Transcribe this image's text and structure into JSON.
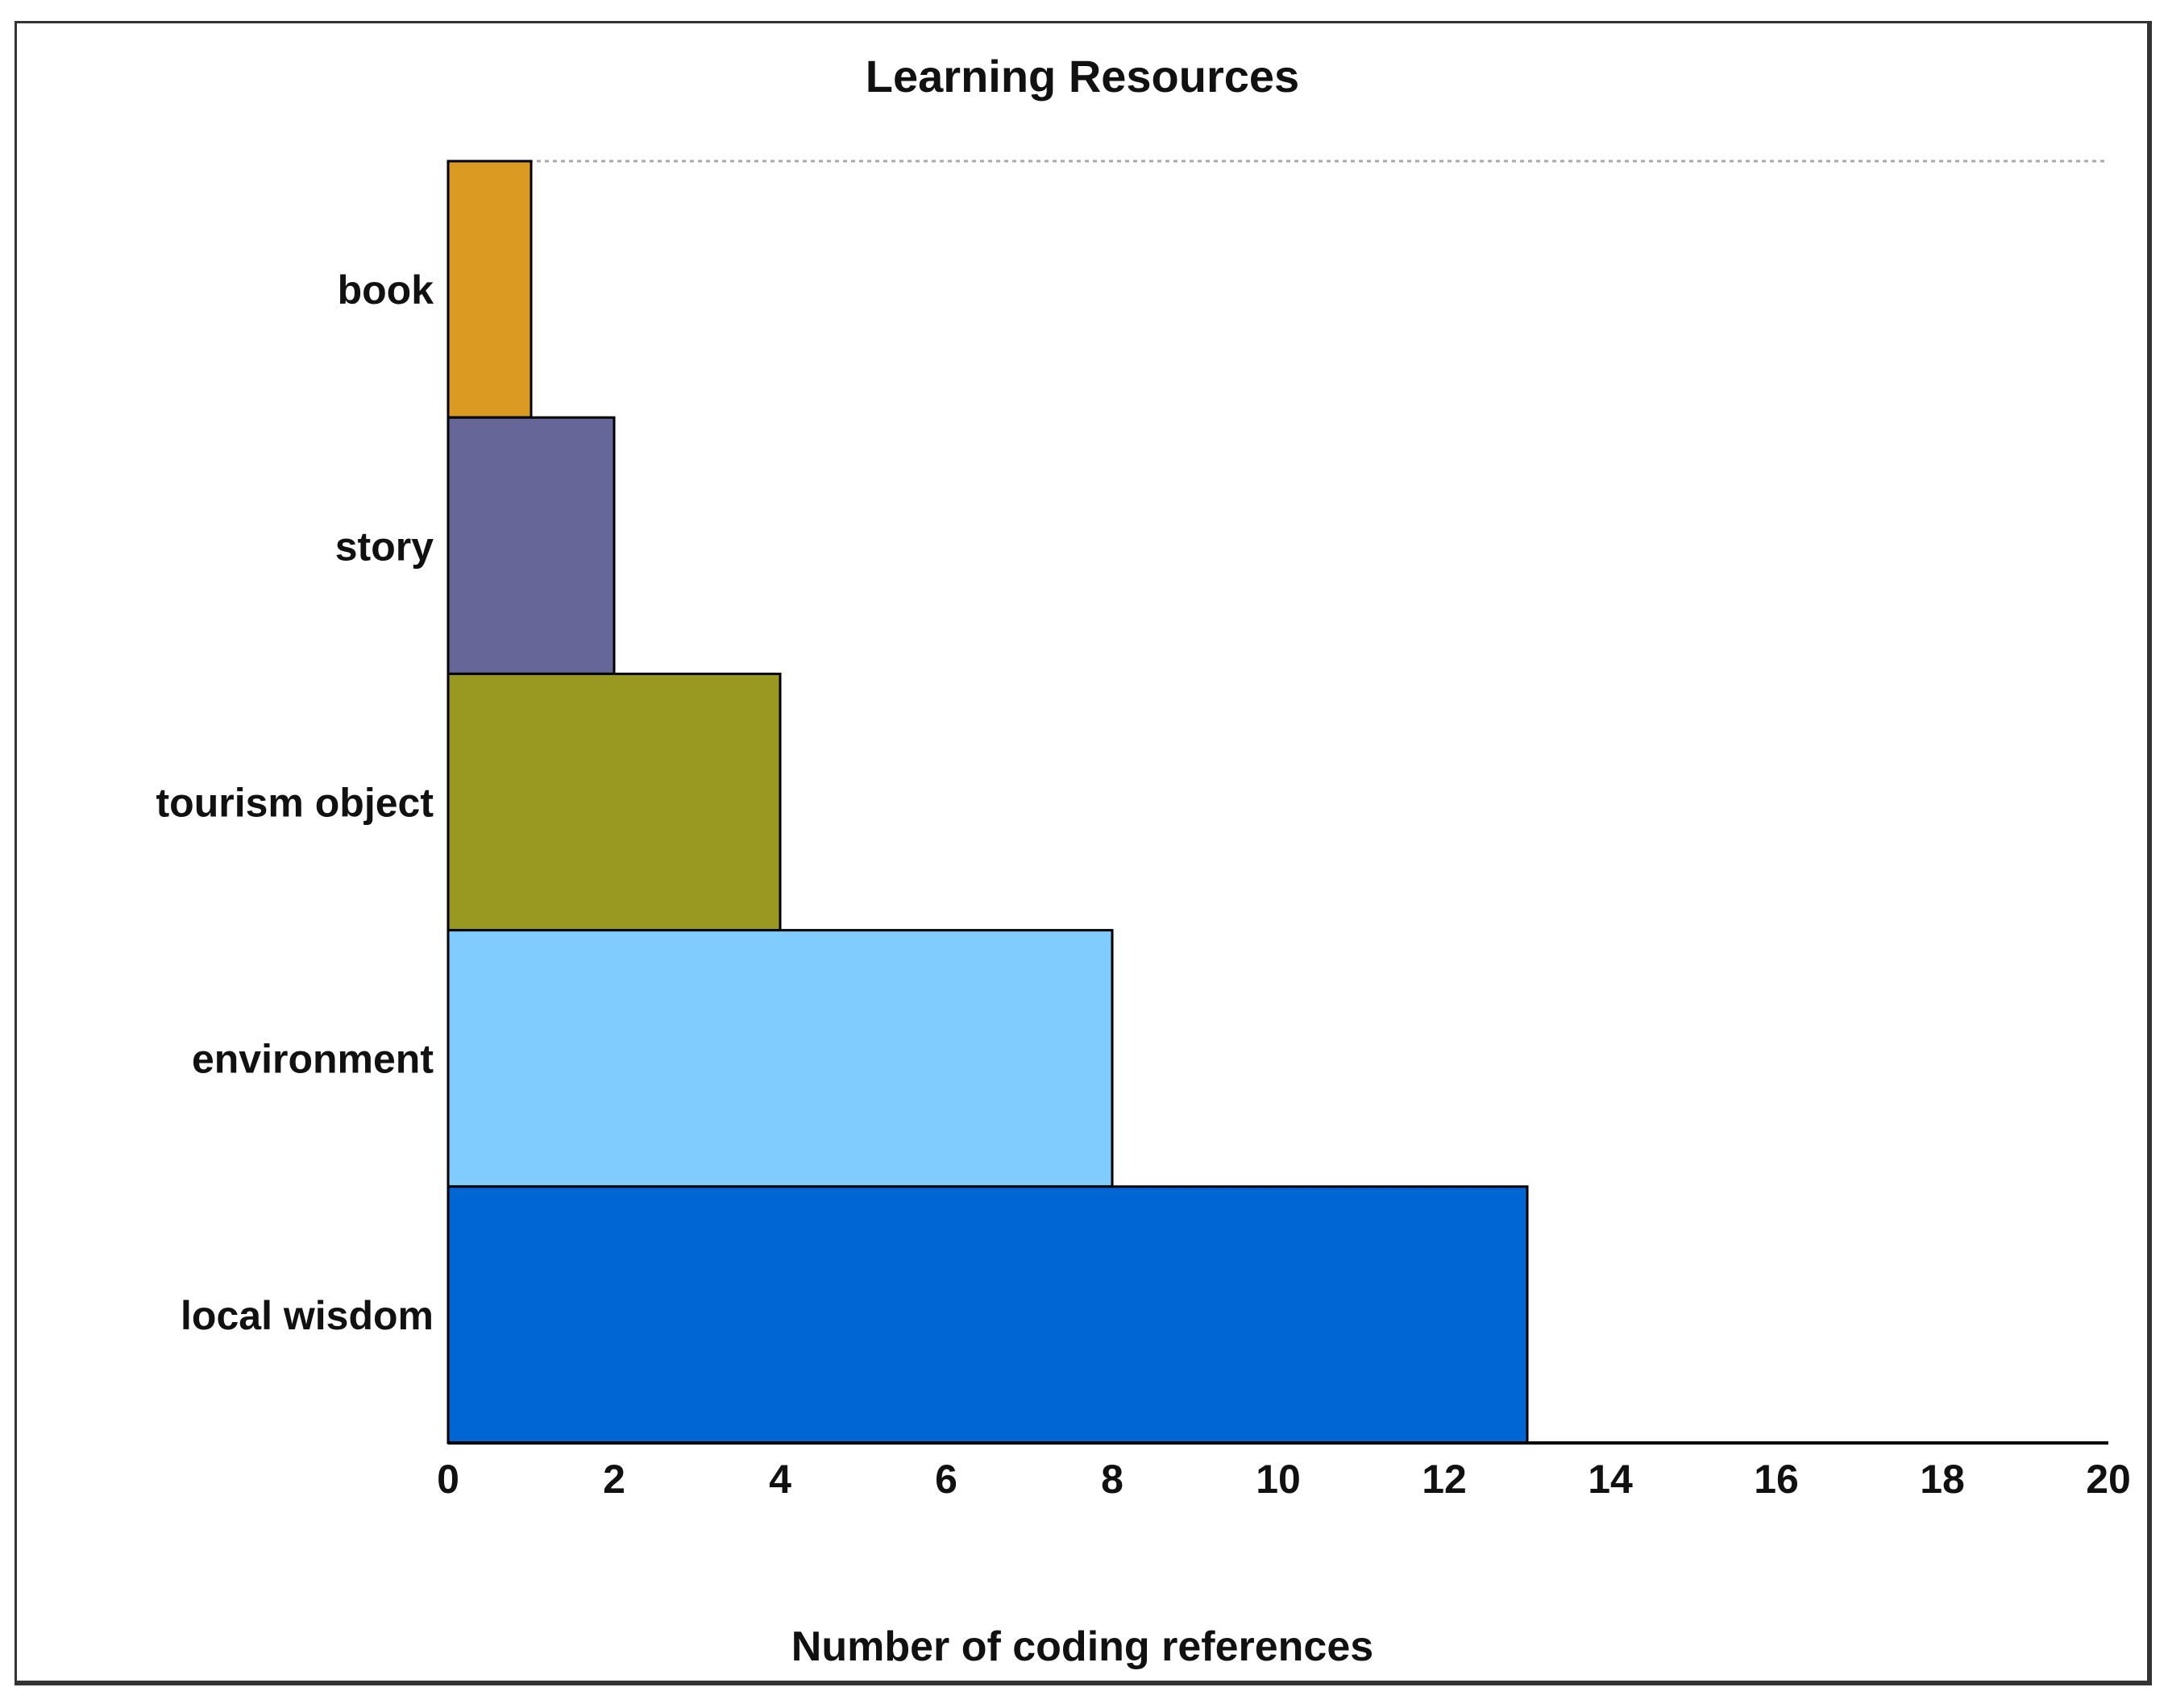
{
  "chart_data": {
    "type": "bar",
    "orientation": "horizontal",
    "title": "Learning Resources",
    "xlabel": "Number of coding references",
    "ylabel": "",
    "xlim": [
      0,
      20
    ],
    "xticks": [
      0,
      2,
      4,
      6,
      8,
      10,
      12,
      14,
      16,
      18,
      20
    ],
    "grid": false,
    "legend": "none",
    "categories": [
      "book",
      "story",
      "tourism object",
      "environment",
      "local wisdom"
    ],
    "values": [
      1,
      2,
      4,
      8,
      13
    ],
    "colors": [
      "#DB9A22",
      "#666699",
      "#999922",
      "#80CCFF",
      "#0066D3"
    ]
  }
}
